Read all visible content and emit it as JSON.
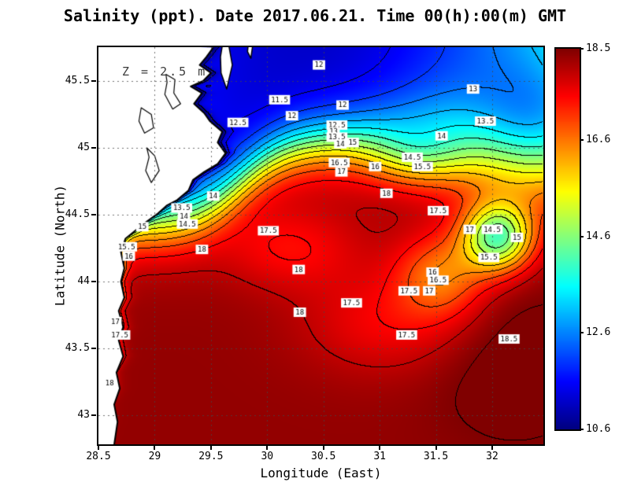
{
  "title": "Salinity (ppt). Date 2017.06.21. Time 00(h):00(m) GMT",
  "annotation": "Z = 2.5 m",
  "axes": {
    "x_label": "Longitude (East)",
    "y_label": "Latitude (North)",
    "x_tick_labels": [
      "28.5",
      "29",
      "29.5",
      "30",
      "30.5",
      "31",
      "31.5",
      "32"
    ],
    "x_tick_values": [
      28.5,
      29,
      29.5,
      30,
      30.5,
      31,
      31.5,
      32
    ],
    "y_tick_labels": [
      "45.5",
      "45",
      "44.5",
      "44",
      "43.5",
      "43"
    ],
    "y_tick_values": [
      45.5,
      45,
      44.5,
      44,
      43.5,
      43
    ]
  },
  "colorbar": {
    "tick_labels": [
      "18.5",
      "16.6",
      "14.6",
      "12.6",
      "10.6"
    ],
    "tick_values": [
      18.5,
      16.6,
      14.6,
      12.6,
      10.6
    ],
    "min": 10.6,
    "max": 18.5,
    "colormap": "jet"
  },
  "chart_data": {
    "type": "heatmap",
    "title": "Salinity (ppt). Date 2017.06.21. Time 00(h):00(m) GMT",
    "variable": "Salinity (ppt)",
    "depth_annotation": "Z = 2.5 m",
    "xlabel": "Longitude (East)",
    "ylabel": "Latitude (North)",
    "xlim": [
      28.5,
      32.455
    ],
    "ylim": [
      42.782,
      45.753
    ],
    "value_range": [
      10.6,
      18.5
    ],
    "contour_interval": 0.5,
    "colorbar_ticks": [
      18.5,
      16.6,
      14.6,
      12.6,
      10.6
    ],
    "grid": {
      "x": [
        29,
        29.5,
        30,
        30.5,
        31,
        31.5,
        32
      ],
      "y": [
        43,
        43.5,
        44,
        44.5,
        45,
        45.5
      ]
    },
    "contour_labels": [
      {
        "v": "12",
        "lon": 30.46,
        "lat": 45.62
      },
      {
        "v": "11.5",
        "lon": 30.11,
        "lat": 45.36
      },
      {
        "v": "12",
        "lon": 30.67,
        "lat": 45.32
      },
      {
        "v": "12",
        "lon": 30.22,
        "lat": 45.24
      },
      {
        "v": "12.5",
        "lon": 29.74,
        "lat": 45.19
      },
      {
        "v": "12.5",
        "lon": 30.62,
        "lat": 45.17
      },
      {
        "v": "13",
        "lon": 30.59,
        "lat": 45.12
      },
      {
        "v": "13.5",
        "lon": 30.62,
        "lat": 45.08
      },
      {
        "v": "14",
        "lon": 30.65,
        "lat": 45.03
      },
      {
        "v": "15",
        "lon": 30.76,
        "lat": 45.04
      },
      {
        "v": "13",
        "lon": 31.83,
        "lat": 45.44
      },
      {
        "v": "13.5",
        "lon": 31.94,
        "lat": 45.2
      },
      {
        "v": "14",
        "lon": 31.55,
        "lat": 45.09
      },
      {
        "v": "14.5",
        "lon": 31.29,
        "lat": 44.93
      },
      {
        "v": "15.5",
        "lon": 31.38,
        "lat": 44.86
      },
      {
        "v": "16",
        "lon": 30.96,
        "lat": 44.86
      },
      {
        "v": "16.5",
        "lon": 30.64,
        "lat": 44.89
      },
      {
        "v": "17",
        "lon": 30.66,
        "lat": 44.82
      },
      {
        "v": "14",
        "lon": 29.52,
        "lat": 44.64
      },
      {
        "v": "13.5",
        "lon": 29.24,
        "lat": 44.55
      },
      {
        "v": "14",
        "lon": 29.26,
        "lat": 44.49
      },
      {
        "v": "14.5",
        "lon": 29.29,
        "lat": 44.43
      },
      {
        "v": "15",
        "lon": 28.89,
        "lat": 44.41
      },
      {
        "v": "15.5",
        "lon": 28.75,
        "lat": 44.26
      },
      {
        "v": "16",
        "lon": 28.77,
        "lat": 44.19
      },
      {
        "v": "17.5",
        "lon": 30.01,
        "lat": 44.38
      },
      {
        "v": "18",
        "lon": 29.42,
        "lat": 44.24
      },
      {
        "v": "18",
        "lon": 31.06,
        "lat": 44.66
      },
      {
        "v": "17.5",
        "lon": 31.52,
        "lat": 44.53
      },
      {
        "v": "17",
        "lon": 31.8,
        "lat": 44.39
      },
      {
        "v": "14.5",
        "lon": 32.0,
        "lat": 44.39
      },
      {
        "v": "15",
        "lon": 32.22,
        "lat": 44.33
      },
      {
        "v": "15.5",
        "lon": 31.97,
        "lat": 44.18
      },
      {
        "v": "16",
        "lon": 31.47,
        "lat": 44.07
      },
      {
        "v": "16.5",
        "lon": 31.52,
        "lat": 44.01
      },
      {
        "v": "17.5",
        "lon": 31.26,
        "lat": 43.93
      },
      {
        "v": "17",
        "lon": 31.44,
        "lat": 43.93
      },
      {
        "v": "18",
        "lon": 30.28,
        "lat": 44.09
      },
      {
        "v": "17.5",
        "lon": 30.75,
        "lat": 43.84
      },
      {
        "v": "18",
        "lon": 30.29,
        "lat": 43.77
      },
      {
        "v": "17",
        "lon": 28.65,
        "lat": 43.7
      },
      {
        "v": "17.5",
        "lon": 28.69,
        "lat": 43.6
      },
      {
        "v": "17.5",
        "lon": 31.24,
        "lat": 43.6
      },
      {
        "v": "18.5",
        "lon": 32.15,
        "lat": 43.57
      },
      {
        "v": "18",
        "lon": 28.6,
        "lat": 43.24
      }
    ],
    "field_model": {
      "south": 18.35,
      "north": {
        "base": 11.15,
        "curve": 0.5,
        "lon0": 30.35,
        "max": 14.2
      },
      "front": {
        "lat0": 44.73,
        "amp": 0.33,
        "lon0": 29.75,
        "k": 2.2,
        "w0": 0.13,
        "w1": 0.1,
        "wlon": 31.5,
        "wscale": 0.35
      },
      "coastal": {
        "amp": 1.5,
        "lat0": 43.45,
        "lats": 0.15,
        "decay": 0.04
      },
      "blobs": [
        {
          "lon": 30.2,
          "lat": 44.25,
          "amp": -0.85,
          "sx": 0.45,
          "sy": 0.22
        },
        {
          "lon": 31.1,
          "lat": 43.7,
          "amp": -0.8,
          "sx": 0.55,
          "sy": 0.28
        },
        {
          "lon": 32.05,
          "lat": 44.33,
          "amp": -3.8,
          "sx": 0.22,
          "sy": 0.18
        },
        {
          "lon": 31.55,
          "lat": 44.05,
          "amp": -1.6,
          "sx": 0.28,
          "sy": 0.22
        },
        {
          "lon": 31.35,
          "lat": 44.95,
          "amp": -1.5,
          "sx": 0.32,
          "sy": 0.16
        },
        {
          "lon": 32.45,
          "lat": 45.1,
          "amp": -2.2,
          "sx": 0.45,
          "sy": 0.35
        },
        {
          "lon": 32.2,
          "lat": 43.4,
          "amp": 0.45,
          "sx": 0.5,
          "sy": 0.4
        }
      ]
    },
    "coastline": [
      [
        29.52,
        45.75
      ],
      [
        29.46,
        45.68
      ],
      [
        29.4,
        45.62
      ],
      [
        29.5,
        45.56
      ],
      [
        29.43,
        45.5
      ],
      [
        29.32,
        45.46
      ],
      [
        29.42,
        45.41
      ],
      [
        29.35,
        45.33
      ],
      [
        29.44,
        45.26
      ],
      [
        29.49,
        45.2
      ],
      [
        29.6,
        45.12
      ],
      [
        29.56,
        45.04
      ],
      [
        29.63,
        44.96
      ],
      [
        29.56,
        44.88
      ],
      [
        29.44,
        44.82
      ],
      [
        29.34,
        44.76
      ],
      [
        29.3,
        44.68
      ],
      [
        29.2,
        44.61
      ],
      [
        29.11,
        44.57
      ],
      [
        29.03,
        44.51
      ],
      [
        28.9,
        44.43
      ],
      [
        28.74,
        44.32
      ],
      [
        28.7,
        44.22
      ],
      [
        28.73,
        44.1
      ],
      [
        28.7,
        44.0
      ],
      [
        28.73,
        43.88
      ],
      [
        28.68,
        43.78
      ],
      [
        28.72,
        43.66
      ],
      [
        28.68,
        43.56
      ],
      [
        28.72,
        43.44
      ],
      [
        28.66,
        43.32
      ],
      [
        28.69,
        43.2
      ],
      [
        28.64,
        43.08
      ],
      [
        28.67,
        42.95
      ],
      [
        28.64,
        42.78
      ]
    ],
    "islands": [
      [
        [
          29.6,
          45.76
        ],
        [
          29.66,
          45.76
        ],
        [
          29.69,
          45.62
        ],
        [
          29.64,
          45.44
        ],
        [
          29.59,
          45.56
        ],
        [
          29.585,
          45.68
        ]
      ],
      [
        [
          29.83,
          45.76
        ],
        [
          29.87,
          45.76
        ],
        [
          29.855,
          45.67
        ],
        [
          29.825,
          45.72
        ]
      ]
    ],
    "lakes": [
      [
        [
          29.1,
          45.55
        ],
        [
          29.18,
          45.51
        ],
        [
          29.17,
          45.41
        ],
        [
          29.23,
          45.33
        ],
        [
          29.16,
          45.29
        ],
        [
          29.09,
          45.4
        ],
        [
          29.11,
          45.49
        ]
      ],
      [
        [
          28.88,
          45.3
        ],
        [
          28.97,
          45.25
        ],
        [
          28.99,
          45.15
        ],
        [
          28.91,
          45.11
        ],
        [
          28.86,
          45.2
        ]
      ],
      [
        [
          28.93,
          45.0
        ],
        [
          29.0,
          44.94
        ],
        [
          29.04,
          44.83
        ],
        [
          28.97,
          44.74
        ],
        [
          28.92,
          44.83
        ],
        [
          28.95,
          44.93
        ]
      ]
    ]
  }
}
